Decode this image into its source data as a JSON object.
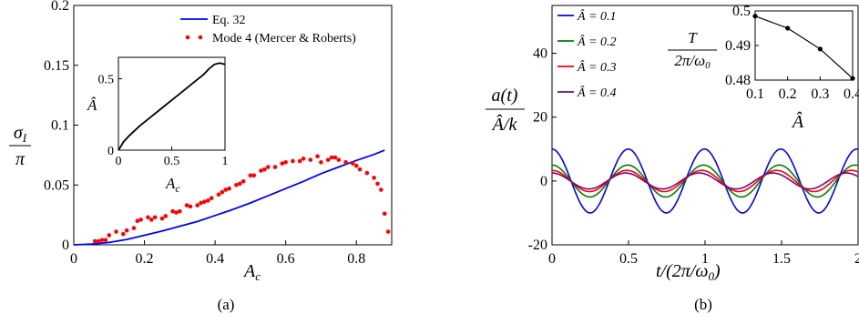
{
  "chart_data": [
    {
      "panel": "(a)",
      "type": "line",
      "xlabel": "A_c",
      "ylabel": "σ_I / π",
      "xlim": [
        0,
        0.9
      ],
      "ylim": [
        0,
        0.2
      ],
      "xticks": [
        "0",
        "0.2",
        "0.4",
        "0.6",
        "0.8"
      ],
      "yticks": [
        "0",
        "0.05",
        "0.1",
        "0.15",
        "0.2"
      ],
      "legend_position": "top-right",
      "series": [
        {
          "name": "Eq. 32",
          "color": "#0000ff",
          "style": "line",
          "x": [
            0,
            0.05,
            0.1,
            0.15,
            0.2,
            0.25,
            0.3,
            0.35,
            0.4,
            0.45,
            0.5,
            0.55,
            0.6,
            0.65,
            0.7,
            0.75,
            0.8,
            0.85,
            0.88
          ],
          "y": [
            0,
            0.0006,
            0.002,
            0.0045,
            0.008,
            0.0115,
            0.0155,
            0.0195,
            0.0245,
            0.0295,
            0.035,
            0.041,
            0.047,
            0.053,
            0.0595,
            0.065,
            0.0705,
            0.0755,
            0.079
          ]
        },
        {
          "name": "Mode 4 (Mercer & Roberts)",
          "color": "#ff0000",
          "style": "markers",
          "x": [
            0.06,
            0.07,
            0.08,
            0.09,
            0.1,
            0.12,
            0.14,
            0.15,
            0.17,
            0.18,
            0.19,
            0.21,
            0.22,
            0.23,
            0.25,
            0.26,
            0.28,
            0.29,
            0.3,
            0.32,
            0.33,
            0.35,
            0.36,
            0.37,
            0.38,
            0.39,
            0.41,
            0.42,
            0.43,
            0.44,
            0.46,
            0.47,
            0.48,
            0.5,
            0.51,
            0.53,
            0.54,
            0.55,
            0.57,
            0.59,
            0.6,
            0.62,
            0.64,
            0.65,
            0.67,
            0.69,
            0.7,
            0.72,
            0.73,
            0.74,
            0.75,
            0.77,
            0.79,
            0.8,
            0.81,
            0.83,
            0.85,
            0.86,
            0.87,
            0.88,
            0.89
          ],
          "y": [
            0.003,
            0.003,
            0.004,
            0.004,
            0.008,
            0.011,
            0.009,
            0.012,
            0.014,
            0.02,
            0.021,
            0.023,
            0.021,
            0.023,
            0.022,
            0.024,
            0.028,
            0.027,
            0.028,
            0.033,
            0.032,
            0.033,
            0.035,
            0.036,
            0.037,
            0.039,
            0.042,
            0.044,
            0.046,
            0.047,
            0.05,
            0.051,
            0.053,
            0.058,
            0.058,
            0.062,
            0.063,
            0.065,
            0.065,
            0.068,
            0.069,
            0.07,
            0.07,
            0.072,
            0.071,
            0.074,
            0.069,
            0.071,
            0.073,
            0.073,
            0.071,
            0.069,
            0.068,
            0.066,
            0.063,
            0.06,
            0.056,
            0.051,
            0.046,
            0.026,
            0.011
          ]
        }
      ],
      "inset": {
        "xlabel": "A_c",
        "ylabel": "Â",
        "xlim": [
          0,
          1
        ],
        "ylim": [
          0,
          0.65
        ],
        "xticks": [
          "0",
          "0.5",
          "1"
        ],
        "yticks": [
          "0",
          "0.5"
        ],
        "series": [
          {
            "color": "#000000",
            "x": [
              0,
              0.05,
              0.1,
              0.2,
              0.3,
              0.4,
              0.5,
              0.6,
              0.7,
              0.8,
              0.85,
              0.9,
              0.95,
              1.0
            ],
            "y": [
              0,
              0.06,
              0.1,
              0.17,
              0.23,
              0.29,
              0.35,
              0.41,
              0.47,
              0.53,
              0.57,
              0.6,
              0.61,
              0.6
            ]
          }
        ]
      }
    },
    {
      "panel": "(b)",
      "type": "line",
      "xlabel": "t/(2π/ω_0)",
      "ylabel": "a(t) / (Â/k)",
      "xlim": [
        0,
        2
      ],
      "ylim": [
        -20,
        55
      ],
      "xticks": [
        "0",
        "0.5",
        "1",
        "1.5",
        "2"
      ],
      "yticks": [
        "-20",
        "0",
        "20",
        "40"
      ],
      "legend_position": "top-left",
      "series": [
        {
          "name": "Â = 0.1",
          "color": "#0000ff",
          "amplitude": 10,
          "period": 0.498
        },
        {
          "name": "Â = 0.2",
          "color": "#008000",
          "amplitude": 5,
          "period": 0.495
        },
        {
          "name": "Â = 0.3",
          "color": "#ff0000",
          "amplitude": 3.33,
          "period": 0.489
        },
        {
          "name": "Â = 0.4",
          "color": "#800080",
          "amplitude": 2.5,
          "period": 0.481
        }
      ],
      "inset": {
        "xlabel": "Â",
        "ylabel": "T / (2π/ω_0)",
        "xlim": [
          0.1,
          0.4
        ],
        "ylim": [
          0.48,
          0.5
        ],
        "xticks": [
          "0.1",
          "0.2",
          "0.3",
          "0.4"
        ],
        "yticks": [
          "0.48",
          "0.49",
          "0.5"
        ],
        "series": [
          {
            "color": "#000000",
            "x": [
              0.1,
              0.2,
              0.3,
              0.4
            ],
            "y": [
              0.4985,
              0.495,
              0.489,
              0.4805
            ]
          }
        ]
      }
    }
  ],
  "captions": {
    "a": "(a)",
    "b": "(b)"
  }
}
